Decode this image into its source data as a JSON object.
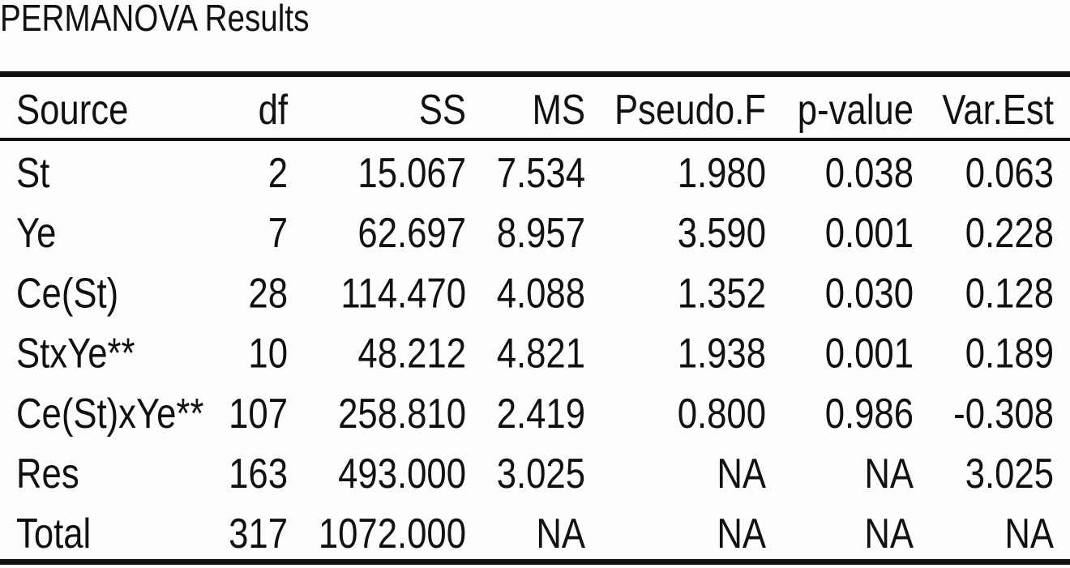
{
  "header": {
    "title": "PERMANOVA Results"
  },
  "table": {
    "columns": [
      "Source",
      "df",
      "SS",
      "MS",
      "Pseudo.F",
      "p-value",
      "Var.Est"
    ],
    "rows": [
      [
        "St",
        "2",
        "15.067",
        "7.534",
        "1.980",
        "0.038",
        "0.063"
      ],
      [
        "Ye",
        "7",
        "62.697",
        "8.957",
        "3.590",
        "0.001",
        "0.228"
      ],
      [
        "Ce(St)",
        "28",
        "114.470",
        "4.088",
        "1.352",
        "0.030",
        "0.128"
      ],
      [
        "StxYe**",
        "10",
        "48.212",
        "4.821",
        "1.938",
        "0.001",
        "0.189"
      ],
      [
        "Ce(St)xYe**",
        "107",
        "258.810",
        "2.419",
        "0.800",
        "0.986",
        "-0.308"
      ],
      [
        "Res",
        "163",
        "493.000",
        "3.025",
        "NA",
        "NA",
        "3.025"
      ],
      [
        "Total",
        "317",
        "1072.000",
        "NA",
        "NA",
        "NA",
        "NA"
      ]
    ]
  }
}
